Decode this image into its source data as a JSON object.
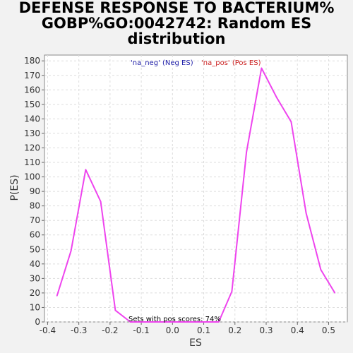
{
  "chart_data": {
    "type": "line",
    "title_lines": [
      "DEFENSE RESPONSE TO BACTERIUM%",
      "GOBP%GO:0042742: Random ES",
      "distribution"
    ],
    "xlabel": "ES",
    "ylabel": "P(ES)",
    "xlim": [
      -0.41,
      0.56
    ],
    "ylim": [
      0,
      184
    ],
    "x_ticks": [
      -0.4,
      -0.3,
      -0.2,
      -0.1,
      0.0,
      0.1,
      0.2,
      0.3,
      0.4,
      0.5
    ],
    "x_tick_labels": [
      "-0.4",
      "-0.3",
      "-0.2",
      "-0.1",
      "0.0",
      "0.1",
      "0.2",
      "0.3",
      "0.4",
      "0.5"
    ],
    "y_ticks": [
      0,
      10,
      20,
      30,
      40,
      50,
      60,
      70,
      80,
      90,
      100,
      110,
      120,
      130,
      140,
      150,
      160,
      170,
      180
    ],
    "grid": true,
    "legend": [
      {
        "label": "'na_neg' (Neg ES)",
        "color": "#2222aa"
      },
      {
        "label": "'na_pos' (Pos ES)",
        "color": "#cc2222"
      }
    ],
    "series": [
      {
        "color": "#ee44ee",
        "x": [
          -0.37,
          -0.325,
          -0.278,
          -0.23,
          -0.183,
          -0.135,
          0.1,
          0.148,
          0.19,
          0.237,
          0.285,
          0.333,
          0.38,
          0.428,
          0.475,
          0.52
        ],
        "y": [
          18,
          49,
          105,
          83,
          8,
          0,
          0,
          0,
          21,
          117,
          175,
          155,
          138,
          75,
          36,
          20
        ]
      }
    ],
    "annotation": "Sets with pos scores: 74%"
  }
}
